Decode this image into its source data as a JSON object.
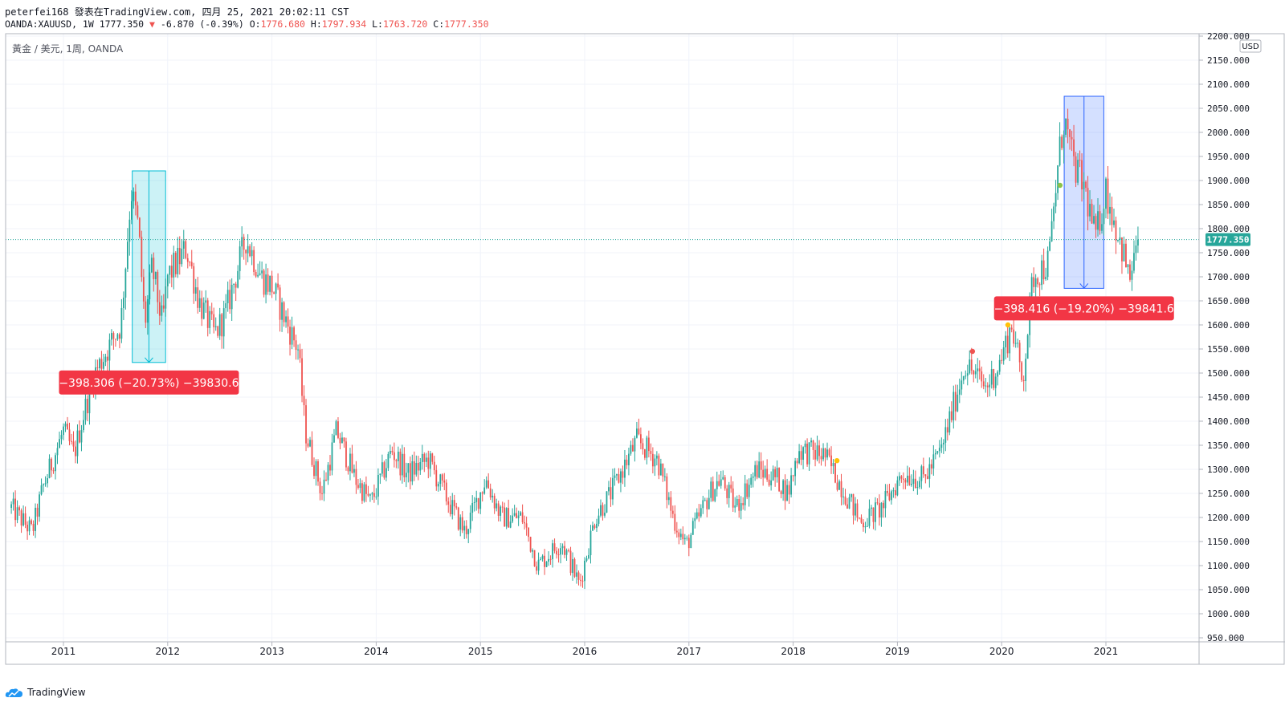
{
  "header": {
    "line1": "peterfei168 發表在TradingView.com, 四月 25, 2021 20:02:11 CST",
    "symbol": "OANDA:XAUUSD, 1W 1777.350",
    "triangle": "▼",
    "change": "-6.870 (-0.39%)",
    "o_label": "O:",
    "o_value": "1776.680",
    "h_label": "H:",
    "h_value": "1797.934",
    "l_label": "L:",
    "l_value": "1763.720",
    "c_label": "C:",
    "c_value": "1777.350"
  },
  "legend_title": "黃金 / 美元, 1周, OANDA",
  "currency_label": "USD",
  "last_price_label": "1777.350",
  "brand_label": "TradingView",
  "colors": {
    "up": "#26a69a",
    "down": "#ef5350",
    "grid": "#f0f3fa",
    "text": "#131722",
    "axis": "#787b86",
    "blue_box": "#2962ff",
    "cyan_box": "#00bcd4",
    "label_red": "#f23645"
  },
  "chart_data": {
    "type": "candlestick",
    "interval": "1W",
    "y_axis": {
      "min": 950,
      "max": 2200,
      "step": 50,
      "unit": "USD",
      "side": "right"
    },
    "x_axis": {
      "ticks": [
        "2011",
        "2012",
        "2013",
        "2014",
        "2015",
        "2016",
        "2017",
        "2018",
        "2019",
        "2020",
        "2021"
      ]
    },
    "grid": true,
    "last_price": 1777.35,
    "anchors": [
      {
        "t": 2010.5,
        "p": 1220
      },
      {
        "t": 2010.7,
        "p": 1170
      },
      {
        "t": 2010.8,
        "p": 1260
      },
      {
        "t": 2011.0,
        "p": 1380
      },
      {
        "t": 2011.1,
        "p": 1330
      },
      {
        "t": 2011.2,
        "p": 1420
      },
      {
        "t": 2011.3,
        "p": 1500
      },
      {
        "t": 2011.4,
        "p": 1540
      },
      {
        "t": 2011.55,
        "p": 1600
      },
      {
        "t": 2011.65,
        "p": 1880
      },
      {
        "t": 2011.72,
        "p": 1800
      },
      {
        "t": 2011.78,
        "p": 1600
      },
      {
        "t": 2011.85,
        "p": 1720
      },
      {
        "t": 2011.95,
        "p": 1600
      },
      {
        "t": 2012.0,
        "p": 1700
      },
      {
        "t": 2012.18,
        "p": 1760
      },
      {
        "t": 2012.3,
        "p": 1650
      },
      {
        "t": 2012.45,
        "p": 1580
      },
      {
        "t": 2012.55,
        "p": 1620
      },
      {
        "t": 2012.75,
        "p": 1780
      },
      {
        "t": 2012.9,
        "p": 1700
      },
      {
        "t": 2013.0,
        "p": 1680
      },
      {
        "t": 2013.15,
        "p": 1600
      },
      {
        "t": 2013.25,
        "p": 1550
      },
      {
        "t": 2013.32,
        "p": 1380
      },
      {
        "t": 2013.48,
        "p": 1250
      },
      {
        "t": 2013.62,
        "p": 1380
      },
      {
        "t": 2013.8,
        "p": 1280
      },
      {
        "t": 2013.95,
        "p": 1230
      },
      {
        "t": 2014.15,
        "p": 1340
      },
      {
        "t": 2014.3,
        "p": 1290
      },
      {
        "t": 2014.5,
        "p": 1320
      },
      {
        "t": 2014.7,
        "p": 1230
      },
      {
        "t": 2014.85,
        "p": 1170
      },
      {
        "t": 2015.05,
        "p": 1280
      },
      {
        "t": 2015.2,
        "p": 1200
      },
      {
        "t": 2015.4,
        "p": 1200
      },
      {
        "t": 2015.55,
        "p": 1100
      },
      {
        "t": 2015.78,
        "p": 1150
      },
      {
        "t": 2015.95,
        "p": 1060
      },
      {
        "t": 2016.1,
        "p": 1200
      },
      {
        "t": 2016.25,
        "p": 1250
      },
      {
        "t": 2016.5,
        "p": 1360
      },
      {
        "t": 2016.7,
        "p": 1320
      },
      {
        "t": 2016.85,
        "p": 1200
      },
      {
        "t": 2016.97,
        "p": 1140
      },
      {
        "t": 2017.2,
        "p": 1250
      },
      {
        "t": 2017.3,
        "p": 1280
      },
      {
        "t": 2017.45,
        "p": 1220
      },
      {
        "t": 2017.65,
        "p": 1300
      },
      {
        "t": 2017.85,
        "p": 1280
      },
      {
        "t": 2017.95,
        "p": 1250
      },
      {
        "t": 2018.05,
        "p": 1340
      },
      {
        "t": 2018.3,
        "p": 1330
      },
      {
        "t": 2018.5,
        "p": 1250
      },
      {
        "t": 2018.65,
        "p": 1190
      },
      {
        "t": 2018.85,
        "p": 1220
      },
      {
        "t": 2019.05,
        "p": 1290
      },
      {
        "t": 2019.25,
        "p": 1280
      },
      {
        "t": 2019.42,
        "p": 1340
      },
      {
        "t": 2019.65,
        "p": 1520
      },
      {
        "t": 2019.85,
        "p": 1470
      },
      {
        "t": 2019.98,
        "p": 1520
      },
      {
        "t": 2020.1,
        "p": 1600
      },
      {
        "t": 2020.2,
        "p": 1480
      },
      {
        "t": 2020.3,
        "p": 1700
      },
      {
        "t": 2020.45,
        "p": 1730
      },
      {
        "t": 2020.55,
        "p": 1950
      },
      {
        "t": 2020.6,
        "p": 2030
      },
      {
        "t": 2020.68,
        "p": 1940
      },
      {
        "t": 2020.8,
        "p": 1880
      },
      {
        "t": 2020.9,
        "p": 1780
      },
      {
        "t": 2021.0,
        "p": 1880
      },
      {
        "t": 2021.1,
        "p": 1800
      },
      {
        "t": 2021.18,
        "p": 1740
      },
      {
        "t": 2021.22,
        "p": 1690
      },
      {
        "t": 2021.27,
        "p": 1740
      },
      {
        "t": 2021.32,
        "p": 1777
      }
    ],
    "measures": [
      {
        "t1": 2011.66,
        "t2": 2011.98,
        "p_high": 1920,
        "p_low": 1522,
        "color": "cyan",
        "label": "−398.306 (−20.73%) −39830.6"
      },
      {
        "t1": 2020.6,
        "t2": 2020.98,
        "p_high": 2075,
        "p_low": 1676,
        "color": "blue",
        "label": "−398.416 (−19.20%) −39841.6"
      }
    ],
    "dots": [
      {
        "t": 2019.72,
        "p": 1545,
        "color": "#ef5350"
      },
      {
        "t": 2020.06,
        "p": 1600,
        "color": "#ffc107"
      },
      {
        "t": 2020.56,
        "p": 1890,
        "color": "#8bc34a"
      },
      {
        "t": 2018.42,
        "p": 1318,
        "color": "#ffc107"
      }
    ]
  }
}
